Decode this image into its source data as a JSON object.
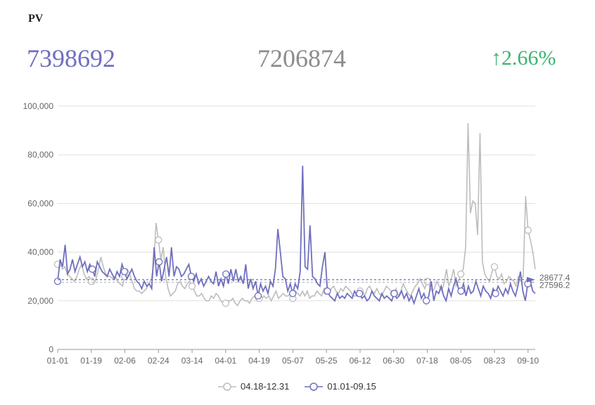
{
  "header": {
    "title": "PV",
    "current_value": "7398692",
    "previous_value": "7206874",
    "change": "↑2.66%"
  },
  "colors": {
    "current": "#6f6fc0",
    "previous": "#bdbdbd",
    "up": "#3cb371"
  },
  "chart_data": {
    "type": "line",
    "x_ticks": [
      "01-01",
      "01-19",
      "02-06",
      "02-24",
      "03-14",
      "04-01",
      "04-19",
      "05-07",
      "05-25",
      "06-12",
      "06-30",
      "07-18",
      "08-05",
      "08-23",
      "09-10"
    ],
    "y_ticks": [
      "0",
      "20,000",
      "40,000",
      "60,000",
      "80,000",
      "100,000"
    ],
    "ylim": [
      0,
      100000
    ],
    "grid": true,
    "legend_position": "bottom",
    "series": [
      {
        "name": "04.18-12.31",
        "color": "#bdbdbd",
        "average_label": "27596.2",
        "average": 27596.2,
        "values": [
          35000,
          36000,
          33000,
          34000,
          31000,
          30000,
          29000,
          28000,
          30000,
          33000,
          35000,
          31000,
          29000,
          30000,
          28000,
          27000,
          29000,
          33000,
          38000,
          34000,
          31000,
          30000,
          30000,
          29000,
          30000,
          28000,
          27000,
          26000,
          30000,
          33000,
          31000,
          28000,
          25000,
          24000,
          24000,
          23000,
          24000,
          25000,
          27000,
          29000,
          35000,
          52000,
          45000,
          37000,
          42000,
          30000,
          25000,
          22000,
          23000,
          24000,
          27000,
          28000,
          26000,
          25000,
          27000,
          28000,
          26000,
          24000,
          22000,
          22000,
          23000,
          21000,
          20000,
          20000,
          22000,
          21000,
          23000,
          22000,
          20000,
          19000,
          19000,
          20000,
          20000,
          21000,
          19000,
          18000,
          20000,
          21000,
          20000,
          20000,
          19000,
          21000,
          22000,
          20000,
          21000,
          21000,
          22000,
          21000,
          22000,
          20000,
          22000,
          24000,
          21000,
          22000,
          23000,
          22000,
          22000,
          23000,
          21000,
          24000,
          23000,
          22000,
          24000,
          22000,
          24000,
          21000,
          22000,
          22000,
          24000,
          23000,
          22000,
          25000,
          24000,
          23000,
          25000,
          26000,
          24000,
          23000,
          25000,
          24000,
          26000,
          25000,
          24000,
          22000,
          22000,
          23000,
          24000,
          24000,
          22000,
          25000,
          26000,
          24000,
          23000,
          25000,
          23000,
          22000,
          24000,
          26000,
          25000,
          24000,
          23000,
          25000,
          22000,
          24000,
          27000,
          25000,
          23000,
          22000,
          24000,
          26000,
          27000,
          29000,
          27000,
          25000,
          28000,
          26000,
          24000,
          25000,
          28000,
          26000,
          24000,
          27000,
          33000,
          26000,
          29000,
          33000,
          26000,
          28000,
          31000,
          33000,
          42000,
          93000,
          56000,
          61000,
          60000,
          47000,
          89000,
          36000,
          31000,
          29000,
          28000,
          32000,
          34000,
          30000,
          29000,
          31000,
          27000,
          28000,
          30000,
          29000,
          28000,
          26000,
          30000,
          28000,
          30000,
          63000,
          49000,
          45000,
          40000,
          33000
        ]
      },
      {
        "name": "01.01-09.15",
        "color": "#6f6fc0",
        "average_label": "28677.4",
        "average": 28677.4,
        "values": [
          28000,
          37000,
          34000,
          43000,
          31000,
          33000,
          37000,
          32000,
          35000,
          38000,
          34000,
          36000,
          32000,
          35000,
          33000,
          30000,
          36000,
          34000,
          32000,
          31000,
          30000,
          33000,
          31000,
          29000,
          32000,
          30000,
          35000,
          32000,
          29000,
          31000,
          33000,
          30000,
          28000,
          27000,
          25000,
          28000,
          26000,
          27000,
          25000,
          42000,
          30000,
          36000,
          28000,
          33000,
          38000,
          30000,
          42000,
          30000,
          34000,
          33000,
          30000,
          31000,
          33000,
          35000,
          30000,
          28000,
          31000,
          27000,
          29000,
          26000,
          28000,
          30000,
          28000,
          27000,
          32000,
          26000,
          29000,
          26000,
          31000,
          27000,
          33000,
          28000,
          33000,
          28000,
          30000,
          27000,
          35000,
          25000,
          29000,
          25000,
          28000,
          22000,
          27000,
          24000,
          26000,
          23000,
          28000,
          26000,
          33000,
          49500,
          40000,
          30000,
          29000,
          24000,
          27000,
          23000,
          27000,
          25000,
          32000,
          75500,
          34000,
          33000,
          51000,
          30000,
          29000,
          27000,
          26000,
          34000,
          40000,
          24000,
          22000,
          21000,
          20000,
          23000,
          21000,
          22000,
          21000,
          23000,
          22000,
          21000,
          24000,
          22000,
          23000,
          21000,
          22000,
          20000,
          21000,
          24000,
          22000,
          21000,
          20000,
          23000,
          21000,
          22000,
          21000,
          20000,
          23000,
          21000,
          22000,
          24000,
          21000,
          23000,
          20000,
          22000,
          19000,
          22000,
          25000,
          21000,
          23000,
          20000,
          22000,
          28000,
          20000,
          24000,
          23000,
          26000,
          22000,
          20000,
          25000,
          22000,
          26000,
          29000,
          25000,
          24000,
          27000,
          22000,
          26000,
          23000,
          24000,
          28000,
          25000,
          22000,
          26000,
          24000,
          23000,
          21000,
          25000,
          23000,
          26000,
          24000,
          22000,
          25000,
          23000,
          27000,
          24000,
          22000,
          26000,
          32000,
          24000,
          20000,
          27000,
          28000,
          24000,
          23000
        ]
      }
    ]
  },
  "legend": {
    "previous_label": "04.18-12.31",
    "current_label": "01.01-09.15"
  }
}
